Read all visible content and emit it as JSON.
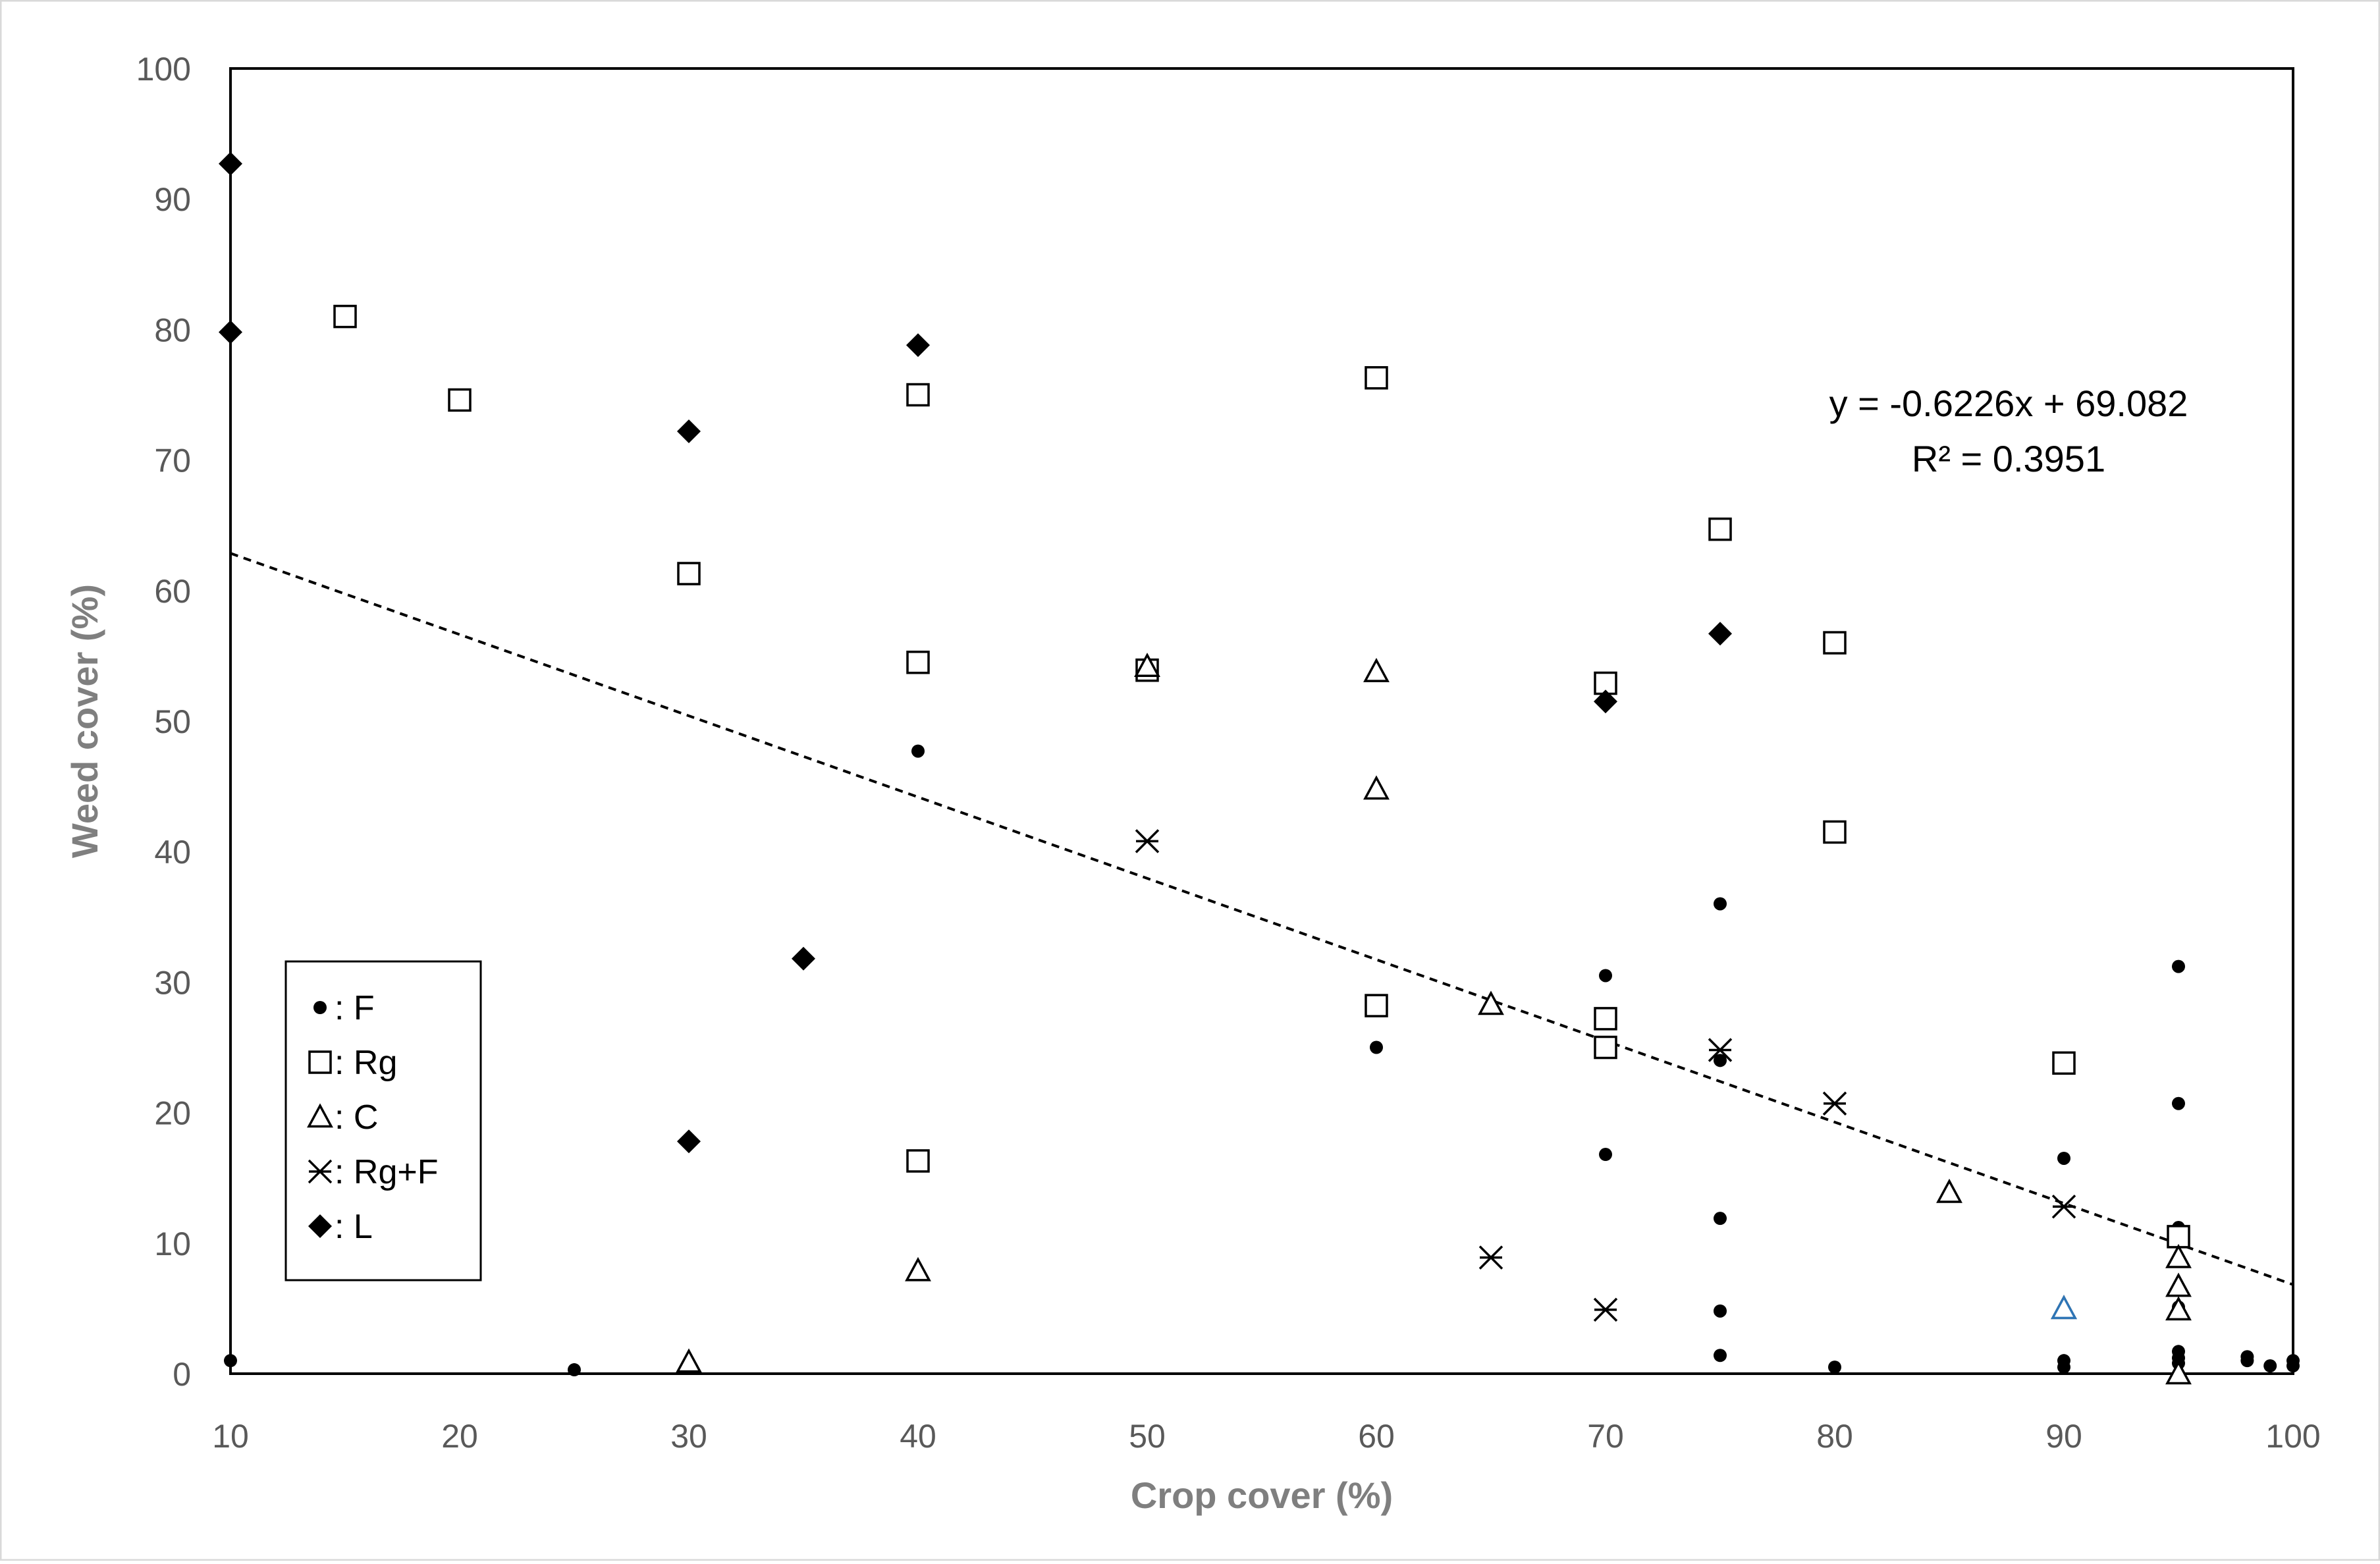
{
  "chart_data": {
    "type": "scatter",
    "xlabel": "Crop cover (%)",
    "ylabel": "Weed cover (%)",
    "xlim": [
      10,
      100
    ],
    "ylim": [
      0,
      100
    ],
    "x_ticks": [
      "10",
      "20",
      "30",
      "40",
      "50",
      "60",
      "70",
      "80",
      "90",
      "100"
    ],
    "y_ticks": [
      "0",
      "10",
      "20",
      "30",
      "40",
      "50",
      "60",
      "70",
      "80",
      "90",
      "100"
    ],
    "grid": false,
    "legend_position": "bottom-left",
    "series": [
      {
        "name": ": F",
        "marker": "dot",
        "color": "#000000",
        "points": [
          [
            10,
            1
          ],
          [
            25,
            0.3
          ],
          [
            40,
            47.7
          ],
          [
            60,
            25
          ],
          [
            70,
            30.5
          ],
          [
            70,
            16.8
          ],
          [
            75,
            36
          ],
          [
            75,
            24
          ],
          [
            75,
            11.9
          ],
          [
            75,
            4.8
          ],
          [
            75,
            1.4
          ],
          [
            80,
            0.5
          ],
          [
            90,
            16.5
          ],
          [
            90,
            1
          ],
          [
            90,
            0.5
          ],
          [
            95,
            31.2
          ],
          [
            95,
            20.7
          ],
          [
            95,
            11.2
          ],
          [
            95,
            5.1
          ],
          [
            95,
            1.7
          ],
          [
            95,
            1.2
          ],
          [
            95,
            0.8
          ],
          [
            98,
            1.3
          ],
          [
            98,
            1
          ],
          [
            99,
            0.6
          ],
          [
            100,
            1
          ],
          [
            100,
            0.6
          ]
        ]
      },
      {
        "name": ": Rg",
        "marker": "square",
        "color": "#000000",
        "points": [
          [
            15,
            81
          ],
          [
            20,
            74.6
          ],
          [
            30,
            61.3
          ],
          [
            40,
            75
          ],
          [
            40,
            54.5
          ],
          [
            40,
            16.3
          ],
          [
            50,
            53.9
          ],
          [
            60,
            76.3
          ],
          [
            60,
            28.2
          ],
          [
            70,
            52.9
          ],
          [
            70,
            27.2
          ],
          [
            70,
            25
          ],
          [
            75,
            64.7
          ],
          [
            80,
            56
          ],
          [
            80,
            41.5
          ],
          [
            90,
            23.8
          ],
          [
            95,
            10.5
          ]
        ]
      },
      {
        "name": ": C",
        "marker": "triangle",
        "color": "#000000",
        "points": [
          [
            30,
            0.9
          ],
          [
            40,
            7.9
          ],
          [
            50,
            54.2
          ],
          [
            60,
            53.8
          ],
          [
            60,
            44.8
          ],
          [
            65,
            28.3
          ],
          [
            85,
            13.9
          ],
          [
            90,
            5
          ],
          [
            95,
            8.9
          ],
          [
            95,
            6.7
          ],
          [
            95,
            4.9
          ],
          [
            95,
            0
          ]
        ]
      },
      {
        "name": ": Rg+F",
        "marker": "asterisk",
        "color": "#000000",
        "points": [
          [
            50,
            40.8
          ],
          [
            65,
            8.9
          ],
          [
            70,
            4.9
          ],
          [
            75,
            24.8
          ],
          [
            80,
            20.7
          ],
          [
            90,
            12.8
          ]
        ]
      },
      {
        "name": ": L",
        "marker": "diamond",
        "color": "#000000",
        "points": [
          [
            10,
            92.7
          ],
          [
            10,
            79.8
          ],
          [
            30,
            72.2
          ],
          [
            30,
            17.8
          ],
          [
            35,
            31.8
          ],
          [
            40,
            78.8
          ],
          [
            70,
            51.5
          ],
          [
            75,
            56.7
          ]
        ]
      }
    ],
    "highlight_points": [
      {
        "x": 90,
        "y": 5,
        "marker": "triangle",
        "color": "#2e75b6"
      }
    ],
    "trendline": {
      "type": "linear",
      "slope": -0.6226,
      "intercept": 69.082,
      "style": "dashed",
      "equation": "y = -0.6226x + 69.082",
      "r2": "R² = 0.3951"
    }
  }
}
